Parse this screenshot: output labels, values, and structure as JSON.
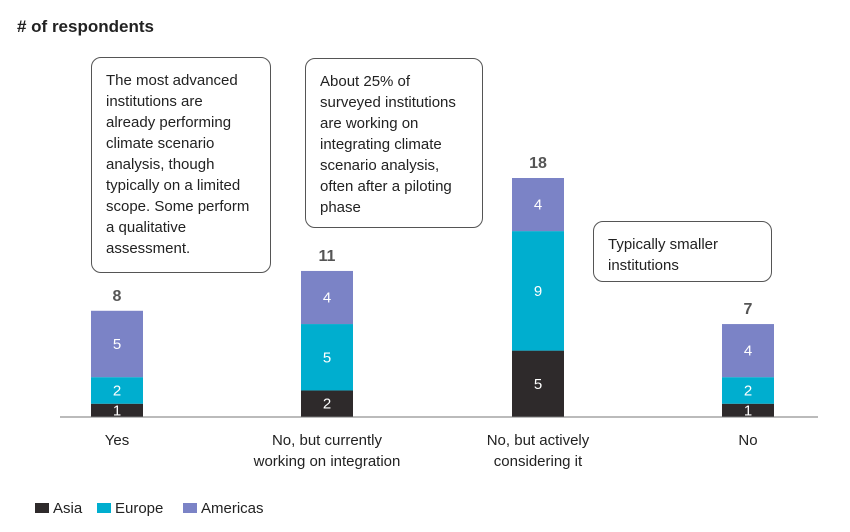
{
  "chart_data": {
    "type": "bar",
    "stacked": true,
    "ylabel": "# of respondents",
    "categories": [
      "Yes",
      "No, but currently working on integration",
      "No, but actively considering it",
      "No"
    ],
    "category_lines": [
      [
        "Yes"
      ],
      [
        "No, but currently",
        "working on integration"
      ],
      [
        "No, but actively",
        "considering it"
      ],
      [
        "No"
      ]
    ],
    "series": [
      {
        "name": "Asia",
        "color": "#2e2a2b",
        "values": [
          1,
          2,
          5,
          1
        ]
      },
      {
        "name": "Europe",
        "color": "#00aecf",
        "values": [
          2,
          5,
          9,
          2
        ]
      },
      {
        "name": "Americas",
        "color": "#7b83c6",
        "values": [
          5,
          4,
          4,
          4
        ]
      }
    ],
    "totals": [
      8,
      11,
      18,
      7
    ],
    "ylim": [
      0,
      18
    ],
    "legend": "bottom-left",
    "grid": false,
    "annotations": [
      "The most advanced institutions are already performing climate scenario analysis, though typically on a limited scope. Some perform a qualitative assessment.",
      "About 25% of surveyed institutions are working on integrating climate scenario analysis, often after a piloting phase",
      "Typically smaller institutions"
    ]
  }
}
